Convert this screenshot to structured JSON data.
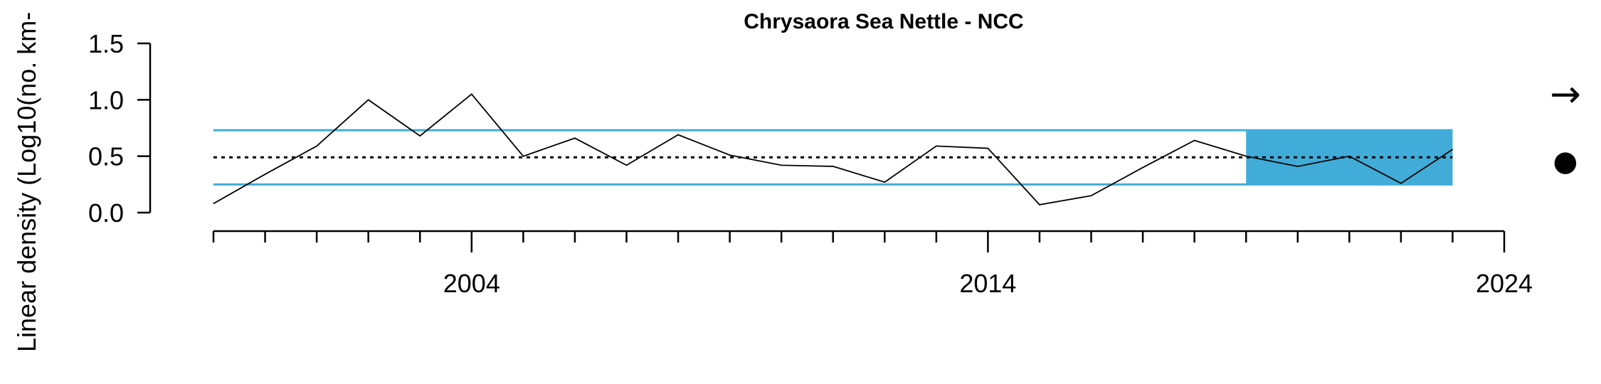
{
  "chart_data": {
    "type": "line",
    "title": "Chrysaora Sea Nettle - NCC",
    "xlabel": "",
    "ylabel": "Linear density (Log10(no. km-",
    "xlim": [
      1998.9,
      2024
    ],
    "ylim": [
      0,
      1.5
    ],
    "y_ticks": [
      0.0,
      0.5,
      1.0,
      1.5
    ],
    "y_tick_labels": [
      "0.0",
      "0.5",
      "1.0",
      "1.5"
    ],
    "x_major_ticks": [
      2004,
      2014,
      2024
    ],
    "x_minor_ticks": [
      1999,
      2000,
      2001,
      2002,
      2003,
      2005,
      2006,
      2007,
      2008,
      2009,
      2010,
      2011,
      2012,
      2013,
      2015,
      2016,
      2017,
      2018,
      2019,
      2020,
      2021,
      2022,
      2023
    ],
    "x_tick_labels": [
      "2004",
      "2014",
      "2024"
    ],
    "series": [
      {
        "name": "Linear density",
        "x": [
          1999,
          2000,
          2001,
          2002,
          2003,
          2004,
          2005,
          2006,
          2007,
          2008,
          2009,
          2010,
          2011,
          2012,
          2013,
          2014,
          2015,
          2016,
          2017,
          2018,
          2019,
          2020,
          2021,
          2022,
          2023
        ],
        "values": [
          0.08,
          0.34,
          0.59,
          1.0,
          0.68,
          1.05,
          0.5,
          0.66,
          0.42,
          0.69,
          0.51,
          0.42,
          0.41,
          0.27,
          0.59,
          0.57,
          0.07,
          0.15,
          0.4,
          0.64,
          0.5,
          0.41,
          0.5,
          0.26,
          0.56
        ],
        "color": "#000000"
      }
    ],
    "mean": 0.49,
    "upper_sd": 0.73,
    "lower_sd": 0.25,
    "recent_window": [
      2019,
      2023
    ],
    "colors": {
      "sd_line": "#41acd8",
      "recent_fill": "#41acd8",
      "line": "#000000"
    },
    "trend_symbol": "→",
    "mean_symbol": "●"
  }
}
